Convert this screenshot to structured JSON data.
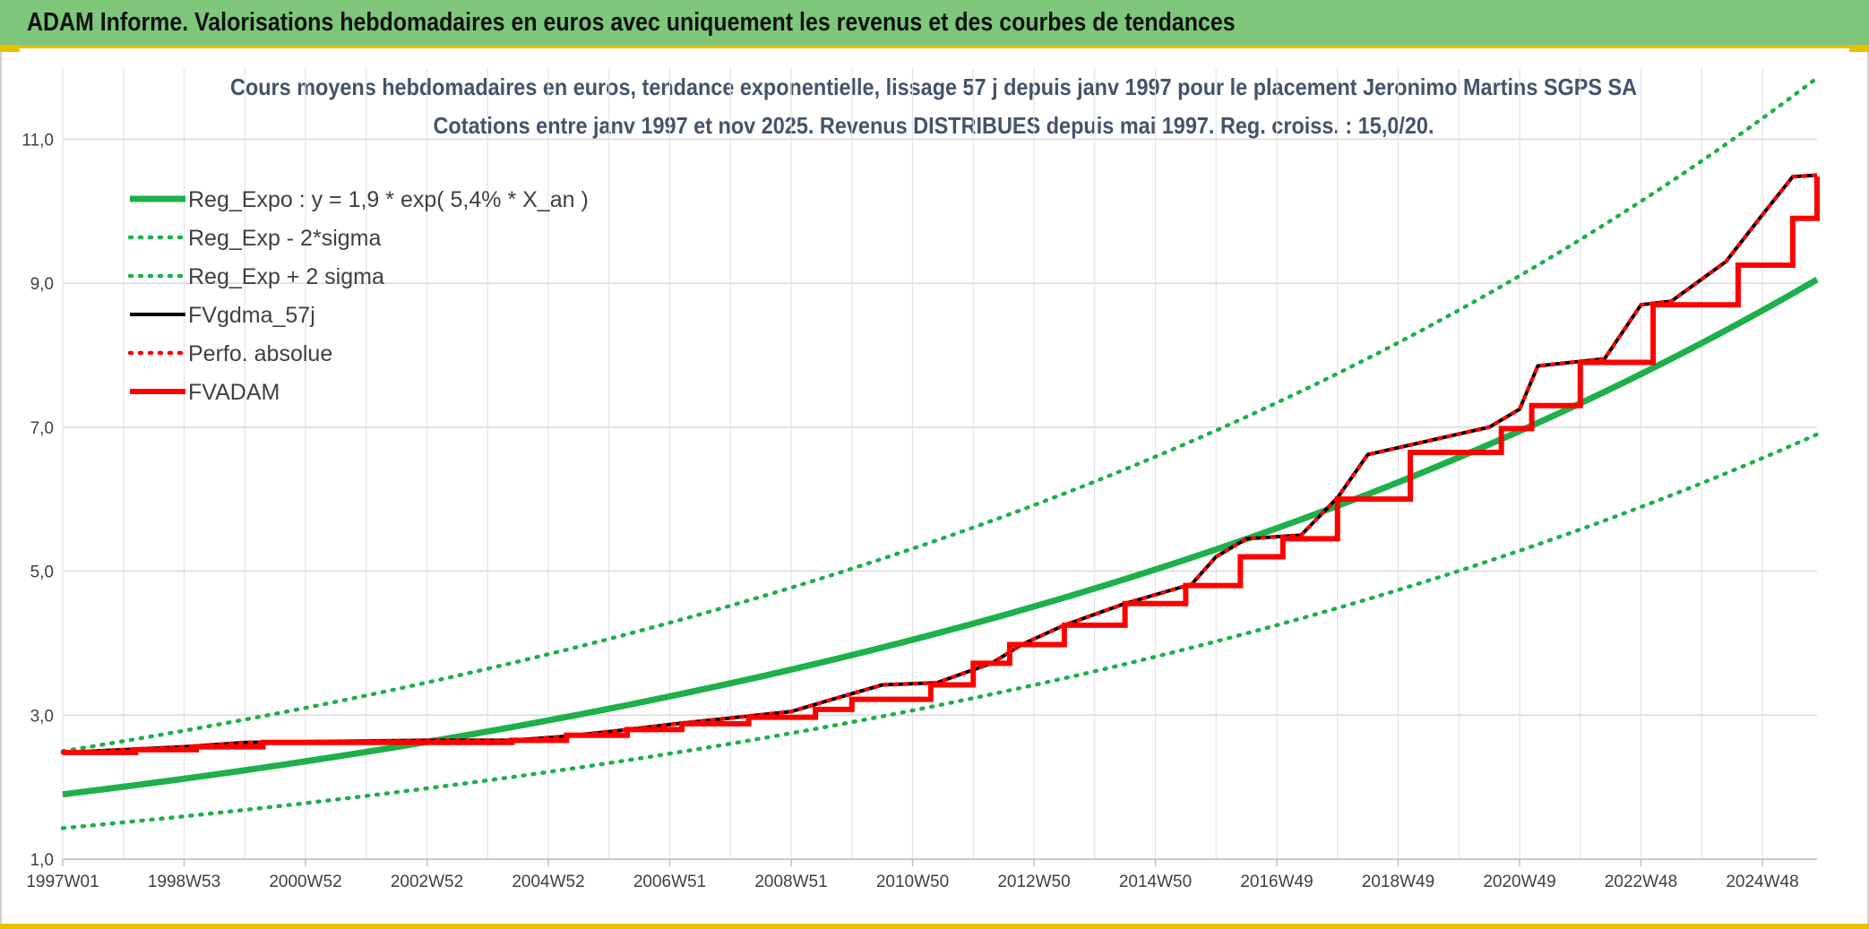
{
  "header": {
    "title": "ADAM Informe. Valorisations hebdomadaires en euros avec uniquement les revenus et des courbes de tendances"
  },
  "colors": {
    "banner": "#7dc67a",
    "accent": "#e8c000",
    "trend_green": "#1db04b",
    "adam_red": "#ff0000",
    "fv_black": "#000000",
    "title_text": "#44546a"
  },
  "chart_data": {
    "type": "line",
    "title": "Cours moyens hebdomadaires en euros, tendance exponentielle, lissage 57 j depuis janv 1997 pour le placement Jeronimo Martins SGPS SA",
    "subtitle": "Cotations entre janv 1997 et nov 2025. Revenus DISTRIBUES depuis mai 1997. Reg. croiss. : 15,0/20.",
    "xlabel": "",
    "ylabel": "",
    "x_range": [
      1997.0,
      2025.9
    ],
    "ylim": [
      1.0,
      12.0
    ],
    "y_ticks": [
      {
        "value": 1,
        "label": "1,0"
      },
      {
        "value": 3,
        "label": "3,0"
      },
      {
        "value": 5,
        "label": "5,0"
      },
      {
        "value": 7,
        "label": "7,0"
      },
      {
        "value": 9,
        "label": "9,0"
      },
      {
        "value": 11,
        "label": "11,0"
      }
    ],
    "x_ticks": [
      {
        "value": 1997.0,
        "label": "1997W01"
      },
      {
        "value": 1999.0,
        "label": "1998W53"
      },
      {
        "value": 2001.0,
        "label": "2000W52"
      },
      {
        "value": 2003.0,
        "label": "2002W52"
      },
      {
        "value": 2005.0,
        "label": "2004W52"
      },
      {
        "value": 2007.0,
        "label": "2006W51"
      },
      {
        "value": 2009.0,
        "label": "2008W51"
      },
      {
        "value": 2011.0,
        "label": "2010W50"
      },
      {
        "value": 2013.0,
        "label": "2012W50"
      },
      {
        "value": 2015.0,
        "label": "2014W50"
      },
      {
        "value": 2017.0,
        "label": "2016W49"
      },
      {
        "value": 2019.0,
        "label": "2018W49"
      },
      {
        "value": 2021.0,
        "label": "2020W49"
      },
      {
        "value": 2023.0,
        "label": "2022W48"
      },
      {
        "value": 2025.0,
        "label": "2024W48"
      }
    ],
    "grid": true,
    "legend_position": "top-left",
    "series": [
      {
        "name": "Reg_Expo : y = 1,9 * exp( 5,4% *  X_an )",
        "style": "solid-thick",
        "color": "#1db04b",
        "x": [
          1997.0,
          1999.0,
          2001.0,
          2003.0,
          2005.0,
          2007.0,
          2009.0,
          2011.0,
          2013.0,
          2015.0,
          2017.0,
          2019.0,
          2021.0,
          2023.0,
          2025.0,
          2025.9
        ],
        "y": [
          1.9,
          2.1,
          2.35,
          2.62,
          2.92,
          3.25,
          3.62,
          4.03,
          4.48,
          4.99,
          5.55,
          6.18,
          6.88,
          7.66,
          8.53,
          9.05
        ]
      },
      {
        "name": "Reg_Exp - 2*sigma",
        "style": "dotted",
        "color": "#1db04b",
        "x": [
          1997.0,
          1999.0,
          2001.0,
          2003.0,
          2005.0,
          2007.0,
          2009.0,
          2011.0,
          2013.0,
          2015.0,
          2017.0,
          2019.0,
          2021.0,
          2023.0,
          2025.0,
          2025.9
        ],
        "y": [
          1.43,
          1.59,
          1.77,
          1.97,
          2.2,
          2.45,
          2.72,
          3.03,
          3.37,
          3.75,
          4.18,
          4.65,
          5.18,
          5.76,
          6.42,
          6.9
        ]
      },
      {
        "name": "Reg_Exp + 2 sigma",
        "style": "dotted",
        "color": "#1db04b",
        "x": [
          1997.0,
          1999.0,
          2001.0,
          2003.0,
          2005.0,
          2007.0,
          2009.0,
          2011.0,
          2013.0,
          2015.0,
          2017.0,
          2019.0,
          2021.0,
          2023.0,
          2025.0,
          2025.9
        ],
        "y": [
          2.5,
          2.78,
          3.1,
          3.45,
          3.84,
          4.28,
          4.77,
          5.31,
          5.91,
          6.58,
          7.33,
          8.16,
          9.08,
          10.11,
          11.26,
          11.85
        ]
      },
      {
        "name": "FVgdma_57j",
        "style": "solid",
        "color": "#000000",
        "x": [
          1997.0,
          1998.0,
          1999.0,
          2000.0,
          2003.0,
          2004.4,
          2005.2,
          2006.1,
          2007.0,
          2008.0,
          2009.0,
          2009.6,
          2010.5,
          2011.4,
          2012.3,
          2012.8,
          2013.5,
          2014.5,
          2015.6,
          2016.0,
          2016.5,
          2017.4,
          2018.0,
          2018.5,
          2020.5,
          2021.0,
          2021.3,
          2022.4,
          2023.0,
          2023.5,
          2024.4,
          2025.0,
          2025.5,
          2025.9
        ],
        "y": [
          2.48,
          2.52,
          2.56,
          2.62,
          2.65,
          2.65,
          2.7,
          2.78,
          2.87,
          2.96,
          3.05,
          3.2,
          3.42,
          3.45,
          3.72,
          3.98,
          4.25,
          4.55,
          4.82,
          5.2,
          5.45,
          5.5,
          6.02,
          6.62,
          7.0,
          7.25,
          7.85,
          7.95,
          8.7,
          8.75,
          9.3,
          9.95,
          10.48,
          10.5
        ]
      },
      {
        "name": "Perfo. absolue",
        "style": "dotted",
        "color": "#ff0000",
        "x": [
          1997.0,
          1998.0,
          1999.0,
          2000.0,
          2003.0,
          2004.4,
          2005.2,
          2006.1,
          2007.0,
          2008.0,
          2009.0,
          2009.6,
          2010.5,
          2011.4,
          2012.3,
          2012.8,
          2013.5,
          2014.5,
          2015.6,
          2016.0,
          2016.5,
          2017.4,
          2018.0,
          2018.5,
          2020.5,
          2021.0,
          2021.3,
          2022.4,
          2023.0,
          2023.5,
          2024.4,
          2025.0,
          2025.5,
          2025.9
        ],
        "y": [
          2.48,
          2.52,
          2.56,
          2.62,
          2.65,
          2.65,
          2.7,
          2.78,
          2.87,
          2.96,
          3.05,
          3.2,
          3.42,
          3.45,
          3.72,
          3.98,
          4.25,
          4.55,
          4.82,
          5.2,
          5.45,
          5.5,
          6.02,
          6.62,
          7.0,
          7.25,
          7.85,
          7.95,
          8.7,
          8.75,
          9.3,
          9.95,
          10.48,
          10.5
        ]
      },
      {
        "name": "FVADAM",
        "style": "step-thick",
        "color": "#ff0000",
        "x": [
          1997.0,
          1998.2,
          1999.2,
          2000.3,
          2004.4,
          2005.3,
          2006.3,
          2007.2,
          2008.3,
          2009.4,
          2010.0,
          2011.3,
          2012.0,
          2012.6,
          2013.5,
          2014.5,
          2015.5,
          2016.4,
          2017.1,
          2018.0,
          2019.2,
          2020.7,
          2021.2,
          2022.0,
          2023.2,
          2024.6,
          2025.5,
          2025.9
        ],
        "y": [
          2.48,
          2.52,
          2.56,
          2.62,
          2.65,
          2.72,
          2.8,
          2.88,
          2.97,
          3.08,
          3.22,
          3.42,
          3.72,
          3.98,
          4.25,
          4.55,
          4.8,
          5.2,
          5.45,
          6.0,
          6.65,
          6.98,
          7.3,
          7.9,
          8.7,
          9.25,
          9.9,
          10.48
        ]
      }
    ]
  }
}
